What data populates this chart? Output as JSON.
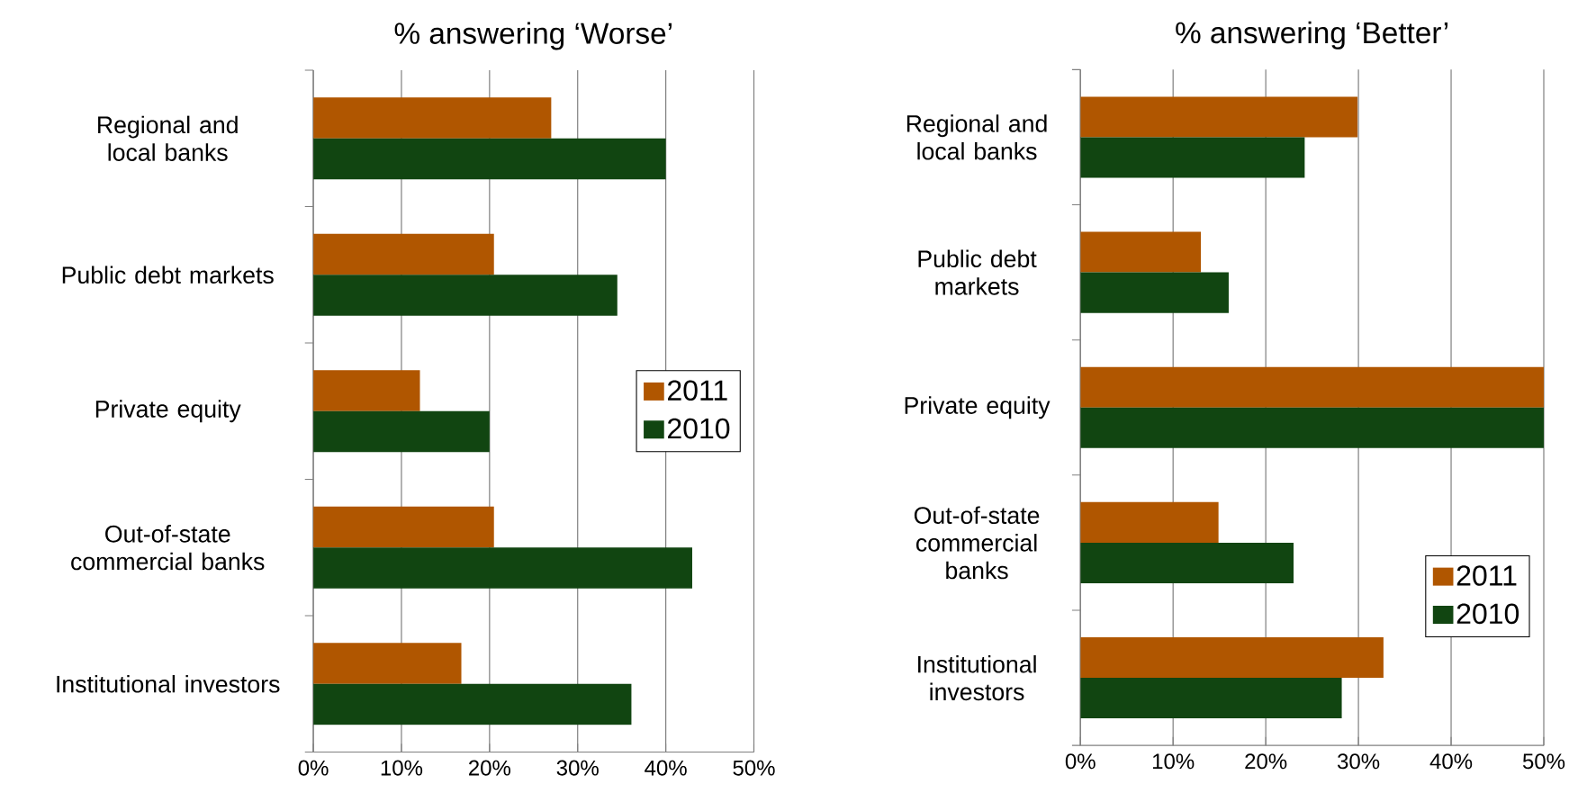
{
  "chart_data": [
    {
      "type": "bar",
      "orientation": "horizontal",
      "title": "% answering ‘Worse’",
      "categories": [
        "Regional and local banks",
        "Public debt markets",
        "Private equity",
        "Out-of-state commercial banks",
        "Institutional investors"
      ],
      "series": [
        {
          "name": "2011",
          "color": "#b05600",
          "values": [
            27.0,
            20.5,
            12.1,
            20.5,
            16.8
          ]
        },
        {
          "name": "2010",
          "color": "#114511",
          "values": [
            40.0,
            34.5,
            20.0,
            43.0,
            36.1
          ]
        }
      ],
      "xlim": [
        0,
        50
      ],
      "xticks": [
        {
          "value": 0,
          "label": "0%"
        },
        {
          "value": 10,
          "label": "10%"
        },
        {
          "value": 20,
          "label": "20%"
        },
        {
          "value": 30,
          "label": "30%"
        },
        {
          "value": 40,
          "label": "40%"
        },
        {
          "value": 50,
          "label": "50%"
        }
      ],
      "grid": "x",
      "legend": "right"
    },
    {
      "type": "bar",
      "orientation": "horizontal",
      "title": "% answering ‘Better’",
      "categories": [
        "Regional and local banks",
        "Public debt markets",
        "Private equity",
        "Out-of-state commercial banks",
        "Institutional investors"
      ],
      "series": [
        {
          "name": "2011",
          "color": "#b05600",
          "values": [
            29.9,
            13.0,
            50.0,
            14.9,
            32.7
          ]
        },
        {
          "name": "2010",
          "color": "#114511",
          "values": [
            24.2,
            16.0,
            50.0,
            23.0,
            28.2
          ]
        }
      ],
      "xlim": [
        0,
        50
      ],
      "xticks": [
        {
          "value": 0,
          "label": "0%"
        },
        {
          "value": 10,
          "label": "10%"
        },
        {
          "value": 20,
          "label": "20%"
        },
        {
          "value": 30,
          "label": "30%"
        },
        {
          "value": 40,
          "label": "40%"
        },
        {
          "value": 50,
          "label": "50%"
        }
      ],
      "grid": "x",
      "legend": "bottom right"
    }
  ]
}
